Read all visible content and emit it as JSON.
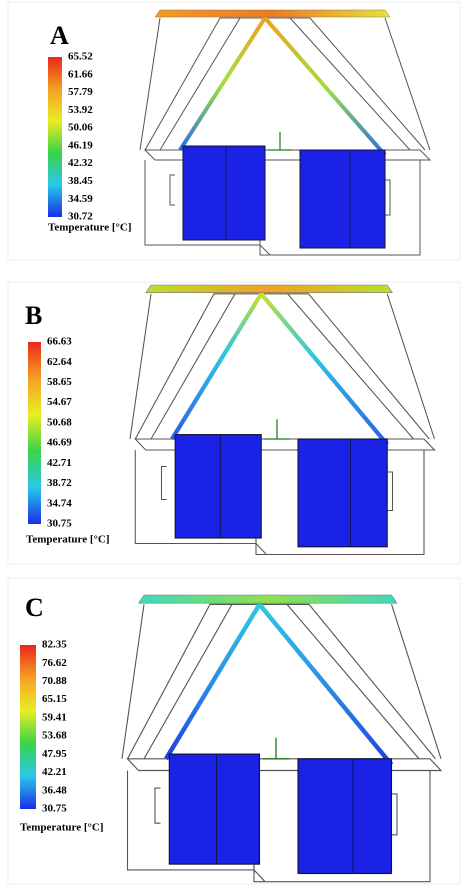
{
  "panels": [
    {
      "label": "A",
      "colorbar": {
        "ticks": [
          "65.52",
          "61.66",
          "57.79",
          "53.92",
          "50.06",
          "46.19",
          "42.32",
          "38.45",
          "34.59",
          "30.72"
        ],
        "title": "Temperature [°C]"
      }
    },
    {
      "label": "B",
      "colorbar": {
        "ticks": [
          "66.63",
          "62.64",
          "58.65",
          "54.67",
          "50.68",
          "46.69",
          "42.71",
          "38.72",
          "34.74",
          "30.75"
        ],
        "title": "Temperature [°C]"
      }
    },
    {
      "label": "C",
      "colorbar": {
        "ticks": [
          "82.35",
          "76.62",
          "70.88",
          "65.15",
          "59.41",
          "53.68",
          "47.95",
          "42.21",
          "36.48",
          "30.75"
        ],
        "title": "Temperature [°C]"
      }
    }
  ]
}
